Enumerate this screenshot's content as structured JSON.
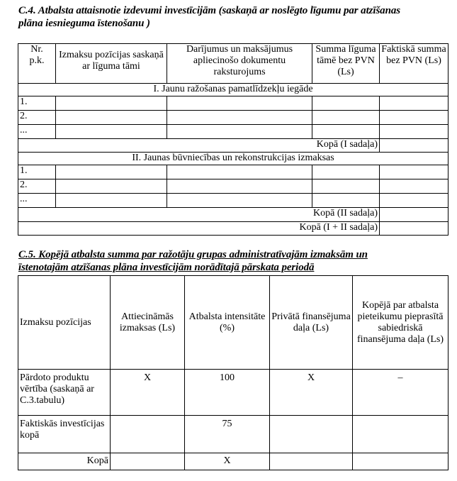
{
  "c4": {
    "title_line1": "C.4. Atbalsta attaisnotie izdevumi investīcijām (saskaņā ar noslēgto līgumu par atzīšanas",
    "title_line2": "plāna iesnieguma īstenošanu )",
    "headers": [
      "Nr. p.k.",
      "Izmaksu pozīcijas saskaņā ar līguma tāmi",
      "Darījumus un maksājumus apliecinošo dokumentu raksturojums",
      "Summa līguma tāmē bez PVN (Ls)",
      "Faktiskā summa bez PVN (Ls)"
    ],
    "section1": "I. Jaunu ražošanas pamatlīdzekļu iegāde",
    "section1_rows": [
      "1.",
      "2.",
      "..."
    ],
    "total1": "Kopā (I sadaļa)",
    "section2": "II. Jaunas būvniecības un rekonstrukcijas izmaksas",
    "section2_rows": [
      "1.",
      "2.",
      "..."
    ],
    "total2": "Kopā (II sadaļa)",
    "total12": "Kopā (I + II sadaļa)"
  },
  "c5": {
    "title_line1": "C.5. Kopējā atbalsta summa par ražotāju grupas administratīvajām izmaksām un",
    "title_line2": "īstenotajām atzīšanas plāna investīcijām norādītajā pārskata periodā",
    "headers": [
      "Izmaksu pozīcijas",
      "Attiecināmās izmaksas (Ls)",
      "Atbalsta intensitāte (%)",
      "Privātā finansējuma daļa (Ls)",
      "Kopējā par atbalsta pieteikumu pieprasītā sabiedriskā finansējuma daļa (Ls)"
    ],
    "rows": [
      [
        "Pārdoto produktu vērtība (saskaņā ar C.3.tabulu)",
        "X",
        "100",
        "X",
        "–"
      ],
      [
        "Faktiskās investīcijas kopā",
        "",
        "75",
        "",
        ""
      ],
      [
        "Kopā",
        "",
        "X",
        "",
        ""
      ]
    ]
  }
}
